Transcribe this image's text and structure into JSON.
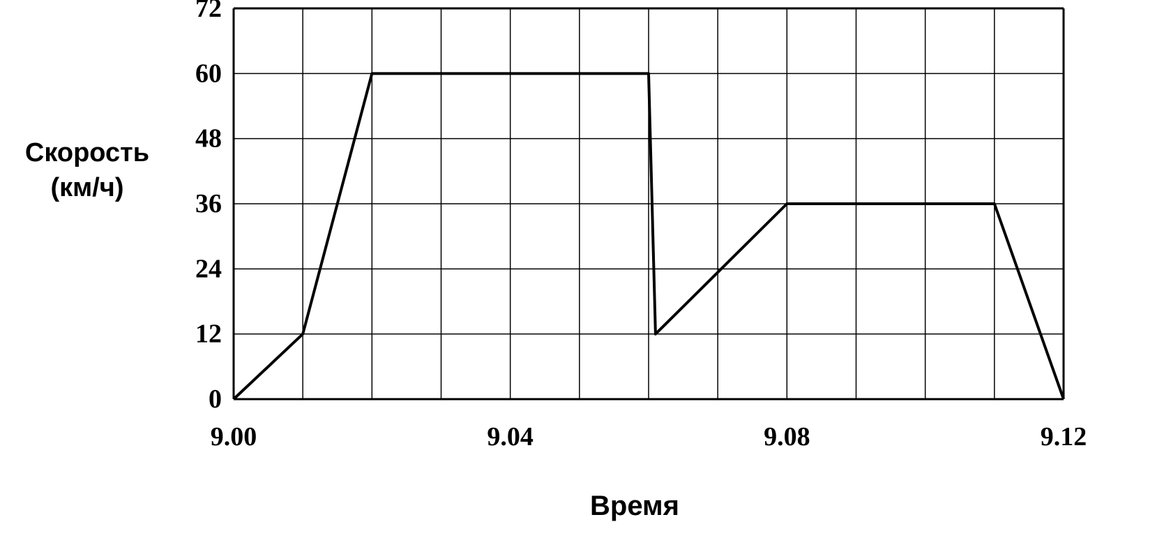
{
  "chart_data": {
    "type": "line",
    "title": "",
    "ylabel_lines": [
      "Скорость",
      "(км/ч)"
    ],
    "xlabel": "Время",
    "x_minutes_after_9": [
      0,
      1,
      2,
      6,
      6.1,
      8,
      11,
      12
    ],
    "y": [
      0,
      12,
      60,
      60,
      12,
      36,
      36,
      0
    ],
    "xlim_minutes": [
      0,
      12
    ],
    "ylim": [
      0,
      72
    ],
    "yticks": [
      0,
      12,
      24,
      36,
      48,
      60,
      72
    ],
    "xticks": [
      {
        "minute": 0,
        "label": "9.00"
      },
      {
        "minute": 4,
        "label": "9.04"
      },
      {
        "minute": 8,
        "label": "9.08"
      },
      {
        "minute": 12,
        "label": "9.12"
      }
    ],
    "grid": true,
    "line_color": "#000000",
    "grid_color": "#000000"
  }
}
